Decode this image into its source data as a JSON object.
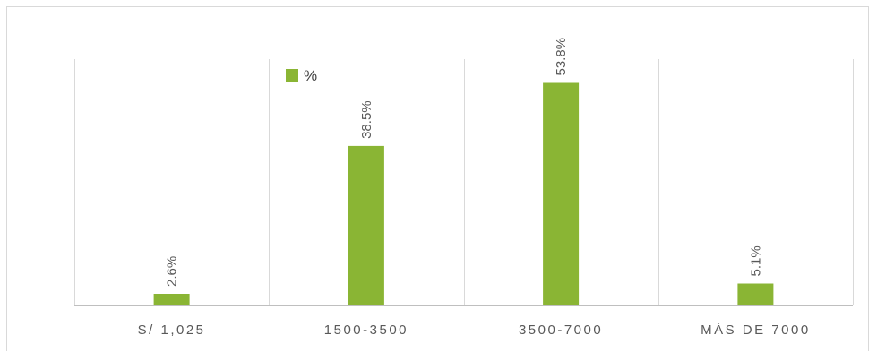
{
  "chart_data": {
    "type": "bar",
    "categories": [
      "S/ 1,025",
      "1500-3500",
      "3500-7000",
      "MÁS DE 7000"
    ],
    "series": [
      {
        "name": "%",
        "values": [
          2.6,
          38.5,
          53.8,
          5.1
        ],
        "labels": [
          "2.6%",
          "38.5%",
          "53.8%",
          "5.1%"
        ],
        "color": "#8ab534"
      }
    ],
    "title": "",
    "xlabel": "",
    "ylabel": "",
    "ylim": [
      0,
      60
    ],
    "grid": "vertical category separators",
    "legend_position": "top-left",
    "data_label_orientation": "vertical"
  },
  "colors": {
    "bar": "#8ab534",
    "gridline": "#d9d9d9",
    "axis": "#bfbfbf",
    "text": "#595959"
  }
}
